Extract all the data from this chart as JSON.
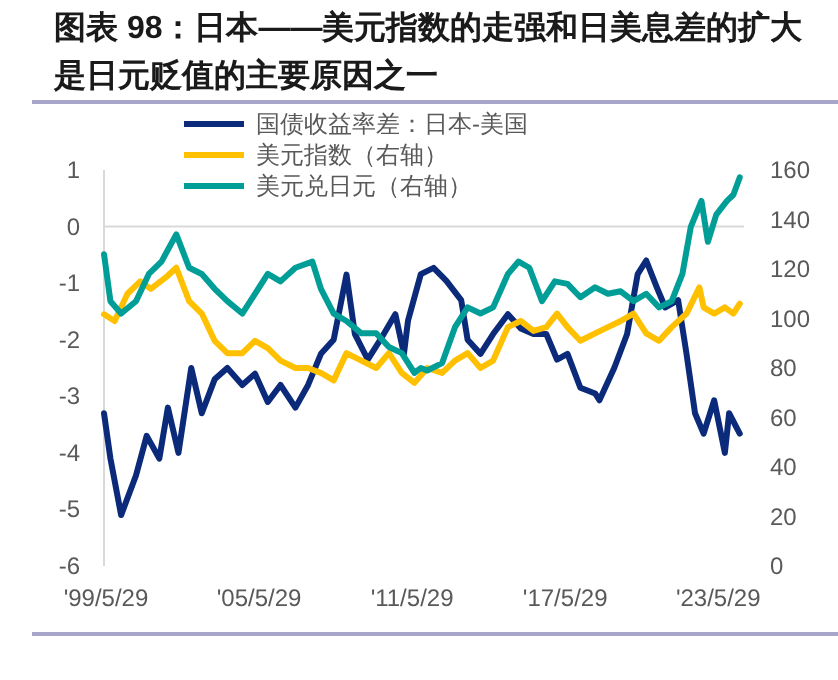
{
  "chart_data": {
    "type": "line",
    "title": "图表 98：日本——美元指数的走强和日美息差的扩大是日元贬值的主要原因之一",
    "legend": "top",
    "xlim": [
      "1999-05-01",
      "2024-06-01"
    ],
    "xticks": [
      {
        "value": "1999-05-29",
        "label": "'99/5/29"
      },
      {
        "value": "2005-05-29",
        "label": "'05/5/29"
      },
      {
        "value": "2011-05-29",
        "label": "'11/5/29"
      },
      {
        "value": "2017-05-29",
        "label": "'17/5/29"
      },
      {
        "value": "2023-05-29",
        "label": "'23/5/29"
      }
    ],
    "ylim": [
      -6,
      1
    ],
    "yticks": [
      -6,
      -5,
      -4,
      -3,
      -2,
      -1,
      0,
      1
    ],
    "y2lim": [
      0,
      160
    ],
    "y2ticks": [
      0,
      20,
      40,
      60,
      80,
      100,
      120,
      140,
      160
    ],
    "ref_lines": [
      {
        "axis": "y",
        "value": 0,
        "color": "#d9d9d9"
      }
    ],
    "series": [
      {
        "name": "国债收益率差：日本-美国",
        "color": "#0b2a7a",
        "x": [
          "1999-05",
          "1999-08",
          "2000-01",
          "2000-08",
          "2001-01",
          "2001-07",
          "2001-11",
          "2002-04",
          "2002-10",
          "2003-03",
          "2003-09",
          "2004-03",
          "2004-10",
          "2005-04",
          "2005-10",
          "2006-04",
          "2006-11",
          "2007-05",
          "2007-11",
          "2008-05",
          "2008-11",
          "2009-03",
          "2009-09",
          "2010-03",
          "2010-10",
          "2011-02",
          "2011-04",
          "2011-10",
          "2012-04",
          "2012-10",
          "2013-05",
          "2013-08",
          "2014-02",
          "2014-08",
          "2015-03",
          "2015-09",
          "2016-03",
          "2016-09",
          "2017-02",
          "2017-07",
          "2018-01",
          "2018-08",
          "2018-10",
          "2019-05",
          "2019-11",
          "2020-04",
          "2020-08",
          "2021-01",
          "2021-05",
          "2021-11",
          "2022-03",
          "2022-07",
          "2022-11",
          "2023-04",
          "2023-09",
          "2023-11",
          "2024-04"
        ],
        "values": [
          -3.3,
          -4.1,
          -5.1,
          -4.4,
          -3.7,
          -4.1,
          -3.2,
          -4.0,
          -2.5,
          -3.3,
          -2.7,
          -2.5,
          -2.8,
          -2.6,
          -3.1,
          -2.8,
          -3.2,
          -2.8,
          -2.25,
          -2.0,
          -0.85,
          -1.9,
          -2.35,
          -2.0,
          -1.55,
          -2.25,
          -1.66,
          -0.84,
          -0.73,
          -0.96,
          -1.3,
          -2.0,
          -2.25,
          -1.9,
          -1.55,
          -1.8,
          -1.9,
          -1.9,
          -2.35,
          -2.25,
          -2.85,
          -2.95,
          -3.07,
          -2.5,
          -1.9,
          -0.84,
          -0.6,
          -1.08,
          -1.43,
          -1.3,
          -2.25,
          -3.3,
          -3.66,
          -3.07,
          -4.0,
          -3.3,
          -3.66
        ]
      },
      {
        "name": "美元指数（右轴）",
        "color": "#ffc000",
        "axis": "y2",
        "x": [
          "1999-05",
          "1999-10",
          "2000-04",
          "2000-10",
          "2001-03",
          "2001-10",
          "2002-03",
          "2002-09",
          "2003-03",
          "2003-09",
          "2004-03",
          "2004-10",
          "2005-04",
          "2005-10",
          "2006-04",
          "2006-11",
          "2007-05",
          "2007-11",
          "2008-05",
          "2008-11",
          "2009-06",
          "2010-01",
          "2010-07",
          "2011-01",
          "2011-07",
          "2012-01",
          "2012-08",
          "2013-02",
          "2013-08",
          "2014-02",
          "2014-08",
          "2015-03",
          "2015-09",
          "2016-03",
          "2016-09",
          "2017-02",
          "2017-07",
          "2018-01",
          "2018-08",
          "2019-02",
          "2019-08",
          "2020-02",
          "2020-08",
          "2021-02",
          "2021-08",
          "2022-03",
          "2022-09",
          "2022-11",
          "2023-04",
          "2023-09",
          "2024-01",
          "2024-04"
        ],
        "values": [
          101.7,
          99,
          110,
          115,
          112,
          116.6,
          120.5,
          107,
          102,
          91,
          86,
          86,
          91,
          88,
          83,
          80,
          80,
          78,
          75,
          86,
          83,
          80,
          86,
          78,
          74,
          80,
          78,
          83,
          86,
          80,
          83,
          96.5,
          99,
          95,
          96.5,
          102,
          96.5,
          91,
          94,
          96.5,
          99,
          102,
          94,
          91,
          96.5,
          102,
          112.6,
          104.5,
          102,
          104.5,
          102,
          106
        ]
      },
      {
        "name": "美元兑日元（右轴）",
        "color": "#009e96",
        "axis": "y2",
        "x": [
          "1999-05",
          "1999-08",
          "2000-01",
          "2000-08",
          "2001-02",
          "2001-08",
          "2002-03",
          "2002-09",
          "2003-03",
          "2003-09",
          "2004-03",
          "2004-10",
          "2005-04",
          "2005-10",
          "2006-04",
          "2006-11",
          "2007-07",
          "2007-11",
          "2008-05",
          "2008-11",
          "2009-06",
          "2010-01",
          "2010-07",
          "2011-01",
          "2011-07",
          "2011-10",
          "2012-01",
          "2012-08",
          "2013-02",
          "2013-08",
          "2014-02",
          "2014-08",
          "2015-03",
          "2015-08",
          "2016-01",
          "2016-07",
          "2017-01",
          "2017-07",
          "2018-01",
          "2018-08",
          "2019-02",
          "2019-08",
          "2020-02",
          "2020-08",
          "2021-02",
          "2021-08",
          "2022-01",
          "2022-05",
          "2022-10",
          "2023-01",
          "2023-05",
          "2023-10",
          "2024-01",
          "2024-04"
        ],
        "values": [
          126,
          107,
          102,
          107,
          118,
          123,
          134,
          120.5,
          118,
          112,
          107,
          102,
          110,
          118,
          115,
          120.5,
          123,
          112,
          102,
          99,
          94,
          94,
          88.5,
          86,
          78,
          80,
          79,
          82,
          96.5,
          104.5,
          102,
          104.5,
          118,
          123,
          120.5,
          107,
          115,
          114,
          108.6,
          112.6,
          110,
          111,
          107,
          110,
          104.5,
          107,
          118,
          137,
          147.5,
          131,
          142,
          147.5,
          150,
          157
        ]
      }
    ]
  }
}
